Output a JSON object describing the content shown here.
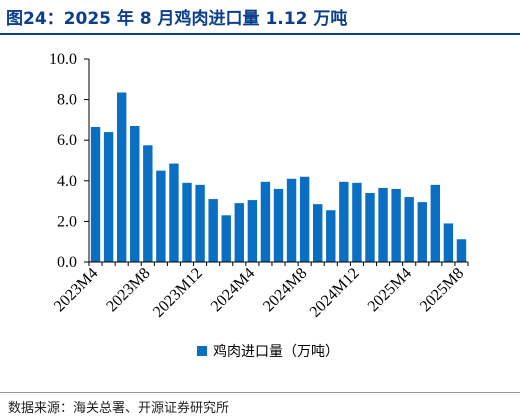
{
  "header": {
    "title": "图24：2025 年 8 月鸡肉进口量 1.12 万吨"
  },
  "footer": {
    "source": "数据来源：海关总署、开源证券研究所"
  },
  "colors": {
    "bar": "#0a6fc2",
    "title": "#0b3f8c"
  },
  "chart_data": {
    "type": "bar",
    "categories": [
      "2023M4",
      "2023M5",
      "2023M6",
      "2023M7",
      "2023M8",
      "2023M9",
      "2023M10",
      "2023M11",
      "2023M12",
      "2024M1",
      "2024M2",
      "2024M3",
      "2024M4",
      "2024M5",
      "2024M6",
      "2024M7",
      "2024M8",
      "2024M9",
      "2024M10",
      "2024M11",
      "2024M12",
      "2025M1",
      "2025M2",
      "2025M3",
      "2025M4",
      "2025M5",
      "2025M6",
      "2025M7",
      "2025M8"
    ],
    "visible_tick_labels": [
      "2023M4",
      "2023M8",
      "2023M12",
      "2024M4",
      "2024M8",
      "2024M12",
      "2025M4",
      "2025M8"
    ],
    "series": [
      {
        "name": "鸡肉进口量（万吨）",
        "values": [
          6.65,
          6.4,
          8.35,
          6.7,
          5.75,
          4.5,
          4.85,
          3.9,
          3.8,
          3.1,
          2.3,
          2.9,
          3.05,
          3.95,
          3.6,
          4.1,
          4.2,
          2.85,
          2.55,
          3.95,
          3.9,
          3.4,
          3.65,
          3.6,
          3.2,
          2.95,
          3.8,
          1.9,
          1.12
        ]
      }
    ],
    "ylim": [
      0,
      10
    ],
    "yticks": [
      "0.0",
      "2.0",
      "4.0",
      "6.0",
      "8.0",
      "10.0"
    ],
    "title": "",
    "xlabel": "",
    "ylabel": "",
    "grid": false,
    "legend_position": "bottom-center"
  }
}
